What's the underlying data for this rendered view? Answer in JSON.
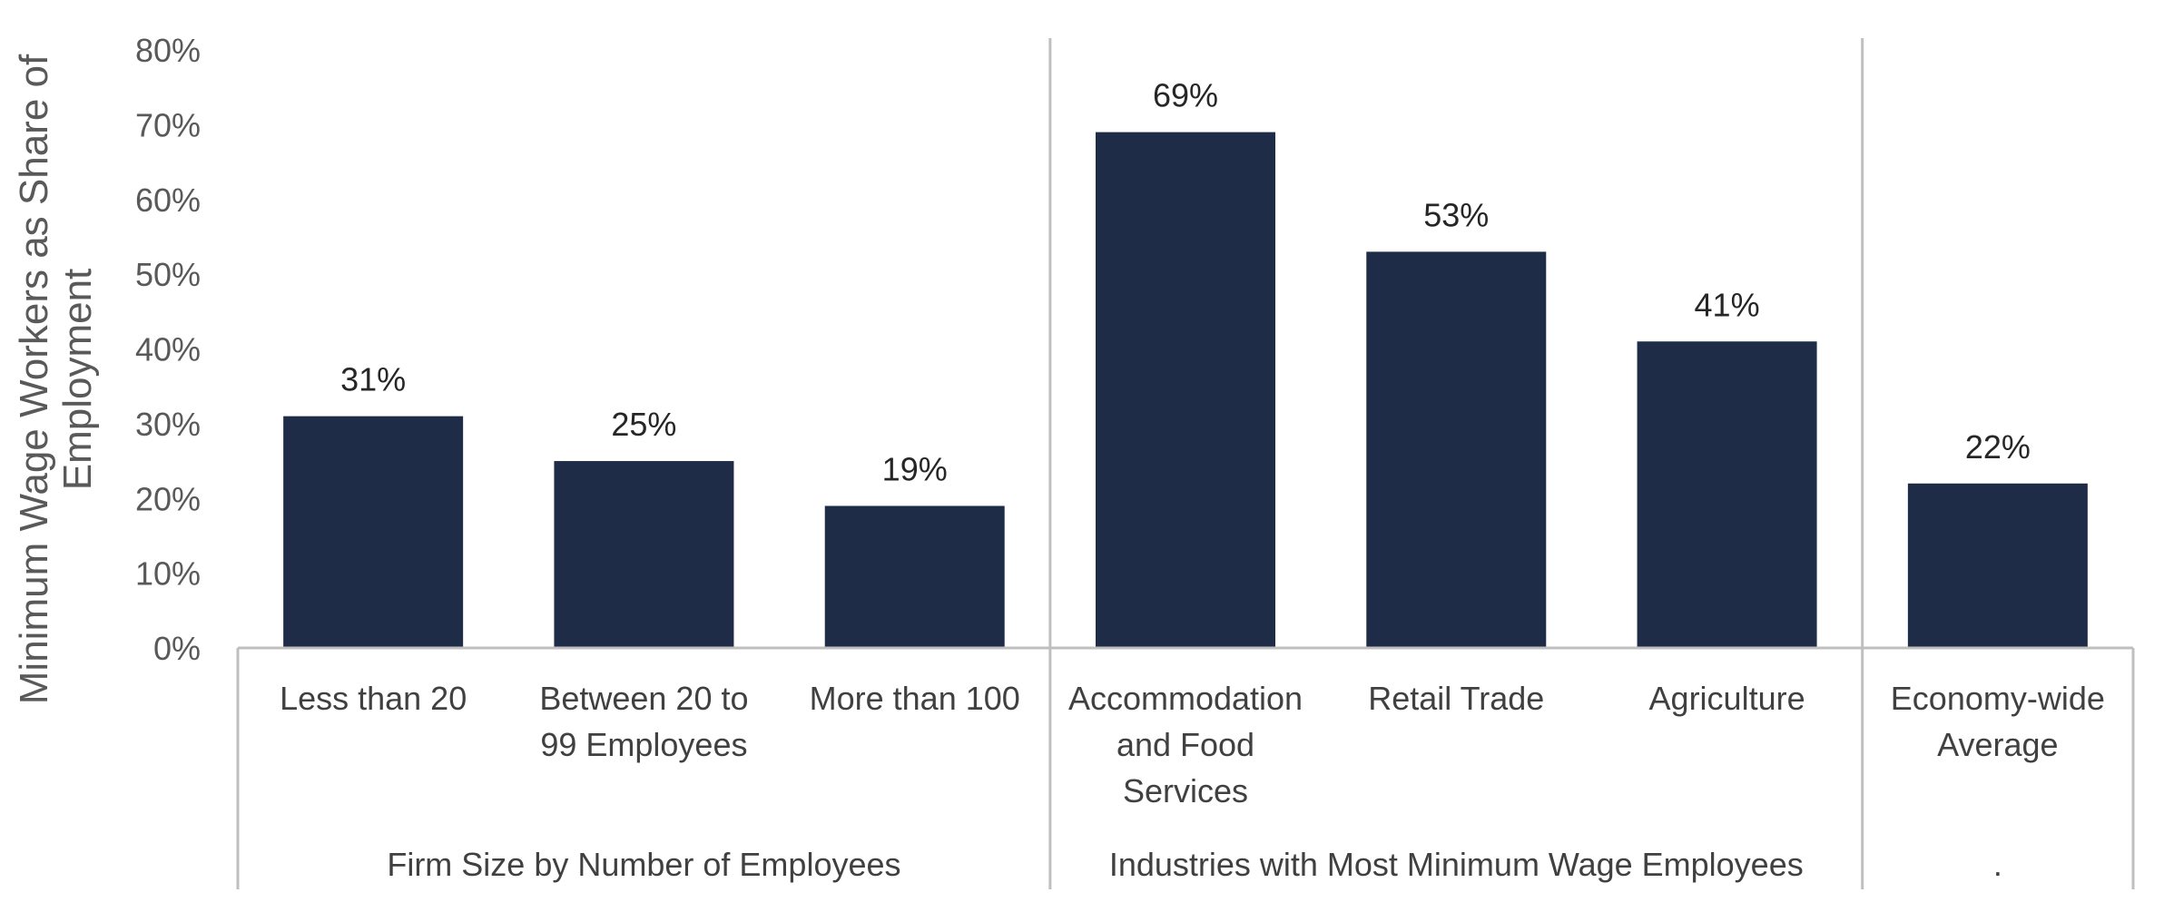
{
  "chart_data": {
    "type": "bar",
    "ylabel_lines": [
      "Minimum Wage Workers as Share of",
      "Employment"
    ],
    "ylim": [
      0,
      80
    ],
    "yticks": [
      0,
      10,
      20,
      30,
      40,
      50,
      60,
      70,
      80
    ],
    "ytick_labels": [
      "0%",
      "10%",
      "20%",
      "30%",
      "40%",
      "50%",
      "60%",
      "70%",
      "80%"
    ],
    "grid": false,
    "legend": "none",
    "bar_color": "#1F2C47",
    "categories": [
      {
        "lines": [
          "Less than 20"
        ],
        "value": 31,
        "label": "31%",
        "group": 0
      },
      {
        "lines": [
          "Between 20 to",
          "99 Employees"
        ],
        "value": 25,
        "label": "25%",
        "group": 0
      },
      {
        "lines": [
          "More than 100"
        ],
        "value": 19,
        "label": "19%",
        "group": 0
      },
      {
        "lines": [
          "Accommodation",
          "and Food",
          "Services"
        ],
        "value": 69,
        "label": "69%",
        "group": 1
      },
      {
        "lines": [
          "Retail Trade"
        ],
        "value": 53,
        "label": "53%",
        "group": 1
      },
      {
        "lines": [
          "Agriculture"
        ],
        "value": 41,
        "label": "41%",
        "group": 1
      },
      {
        "lines": [
          "Economy-wide",
          "Average"
        ],
        "value": 22,
        "label": "22%",
        "group": 2
      }
    ],
    "groups": [
      {
        "label": "Firm Size by Number of Employees"
      },
      {
        "label": "Industries with Most Minimum Wage Employees"
      },
      {
        "label": "."
      }
    ]
  }
}
